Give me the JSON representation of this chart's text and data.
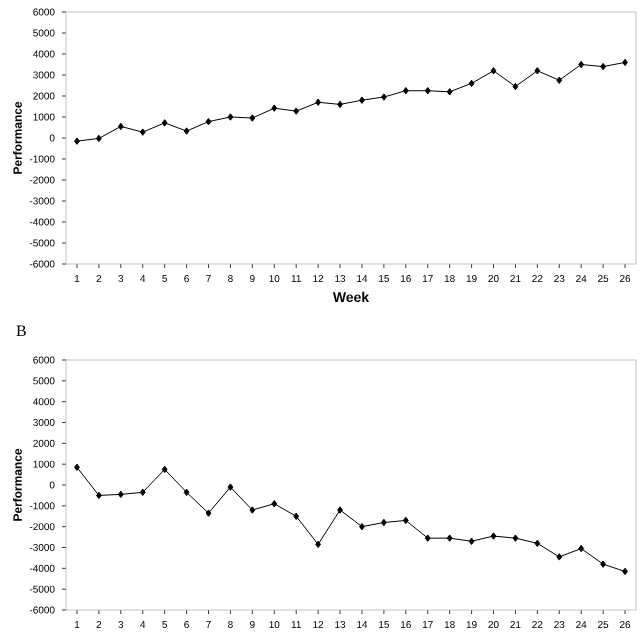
{
  "chart_data": [
    {
      "type": "line",
      "xlabel": "Week",
      "ylabel": "Performance",
      "categories": [
        "1",
        "2",
        "3",
        "4",
        "5",
        "6",
        "7",
        "8",
        "9",
        "10",
        "11",
        "12",
        "13",
        "14",
        "15",
        "16",
        "17",
        "18",
        "19",
        "20",
        "21",
        "22",
        "23",
        "24",
        "25",
        "26"
      ],
      "values": [
        -150,
        -20,
        550,
        280,
        720,
        330,
        780,
        1000,
        950,
        1420,
        1280,
        1700,
        1600,
        1800,
        1950,
        2250,
        2250,
        2200,
        2600,
        3200,
        2450,
        3200,
        2750,
        3500,
        3400,
        3600
      ],
      "color": "#000000",
      "marker": "diamond",
      "line_style": "solid",
      "ylim": [
        -6000,
        6000
      ],
      "yticks": [
        -6000,
        -5000,
        -4000,
        -3000,
        -2000,
        -1000,
        0,
        1000,
        2000,
        3000,
        4000,
        5000,
        6000
      ]
    },
    {
      "type": "line",
      "title": "B",
      "ylabel": "Performance",
      "categories": [
        "1",
        "2",
        "3",
        "4",
        "5",
        "6",
        "7",
        "8",
        "9",
        "10",
        "11",
        "12",
        "13",
        "14",
        "15",
        "16",
        "17",
        "18",
        "19",
        "20",
        "21",
        "22",
        "23",
        "24",
        "25",
        "26"
      ],
      "values": [
        850,
        -500,
        -450,
        -350,
        750,
        -350,
        -1350,
        -100,
        -1200,
        -900,
        -1500,
        -2850,
        -1200,
        -2000,
        -1800,
        -1700,
        -2550,
        -2550,
        -2700,
        -2450,
        -2550,
        -2800,
        -3450,
        -3050,
        -3800,
        -4150
      ],
      "color": "#000000",
      "marker": "diamond",
      "line_style": "solid",
      "ylim": [
        -6000,
        6000
      ],
      "yticks": [
        -6000,
        -5000,
        -4000,
        -3000,
        -2000,
        -1000,
        0,
        1000,
        2000,
        3000,
        4000,
        5000,
        6000
      ]
    }
  ]
}
